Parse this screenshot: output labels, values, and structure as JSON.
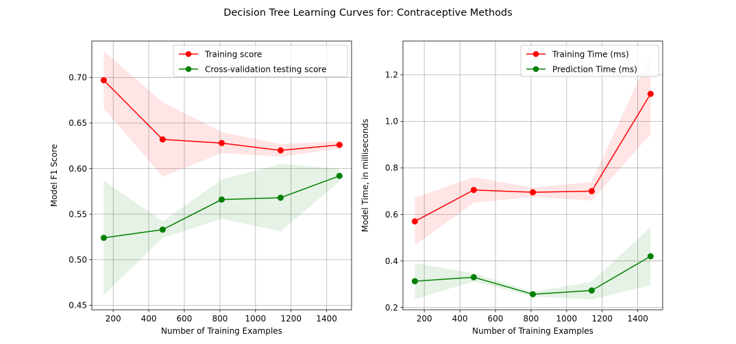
{
  "suptitle": "Decision Tree Learning Curves for: Contraceptive Methods",
  "colors": {
    "train": "#ff0000",
    "test": "#008000",
    "train_band": "#ff0000",
    "test_band": "#008000",
    "grid": "#b0b0b0",
    "axis": "#000000"
  },
  "chart_data": [
    {
      "type": "line",
      "xlabel": "Number of Training Examples",
      "ylabel": "Model F1 Score",
      "xlim": [
        80,
        1540
      ],
      "ylim": [
        0.445,
        0.74
      ],
      "xticks": [
        200,
        400,
        600,
        800,
        1000,
        1200,
        1400
      ],
      "yticks": [
        0.45,
        0.5,
        0.55,
        0.6,
        0.65,
        0.7
      ],
      "ytick_labels": [
        "0.45",
        "0.50",
        "0.55",
        "0.60",
        "0.65",
        "0.70"
      ],
      "grid": true,
      "legend_position": "top-right",
      "x": [
        147,
        478,
        810,
        1141,
        1472
      ],
      "series": [
        {
          "name": "Training score",
          "key": "train",
          "values": [
            0.697,
            0.632,
            0.628,
            0.62,
            0.626
          ],
          "band_low": [
            0.666,
            0.591,
            0.617,
            0.613,
            0.622
          ],
          "band_high": [
            0.729,
            0.673,
            0.64,
            0.627,
            0.63
          ]
        },
        {
          "name": "Cross-validation testing score",
          "key": "test",
          "values": [
            0.524,
            0.533,
            0.566,
            0.568,
            0.592
          ],
          "band_low": [
            0.461,
            0.524,
            0.545,
            0.531,
            0.586
          ],
          "band_high": [
            0.587,
            0.542,
            0.588,
            0.605,
            0.6
          ]
        }
      ]
    },
    {
      "type": "line",
      "xlabel": "Number of Training Examples",
      "ylabel": "Model Time, in milliseconds",
      "xlim": [
        80,
        1540
      ],
      "ylim": [
        0.19,
        1.345
      ],
      "xticks": [
        200,
        400,
        600,
        800,
        1000,
        1200,
        1400
      ],
      "yticks": [
        0.2,
        0.4,
        0.6,
        0.8,
        1.0,
        1.2
      ],
      "ytick_labels": [
        "0.2",
        "0.4",
        "0.6",
        "0.8",
        "1.0",
        "1.2"
      ],
      "grid": true,
      "legend_position": "top-right",
      "x": [
        147,
        478,
        810,
        1141,
        1472
      ],
      "series": [
        {
          "name": "Training Time (ms)",
          "key": "train",
          "values": [
            0.57,
            0.705,
            0.695,
            0.7,
            1.118
          ],
          "band_low": [
            0.468,
            0.65,
            0.675,
            0.66,
            0.945
          ],
          "band_high": [
            0.672,
            0.76,
            0.715,
            0.74,
            1.29
          ]
        },
        {
          "name": "Prediction Time (ms)",
          "key": "test",
          "values": [
            0.313,
            0.33,
            0.257,
            0.273,
            0.42
          ],
          "band_low": [
            0.236,
            0.312,
            0.247,
            0.235,
            0.295
          ],
          "band_high": [
            0.39,
            0.348,
            0.267,
            0.311,
            0.545
          ]
        }
      ]
    }
  ]
}
